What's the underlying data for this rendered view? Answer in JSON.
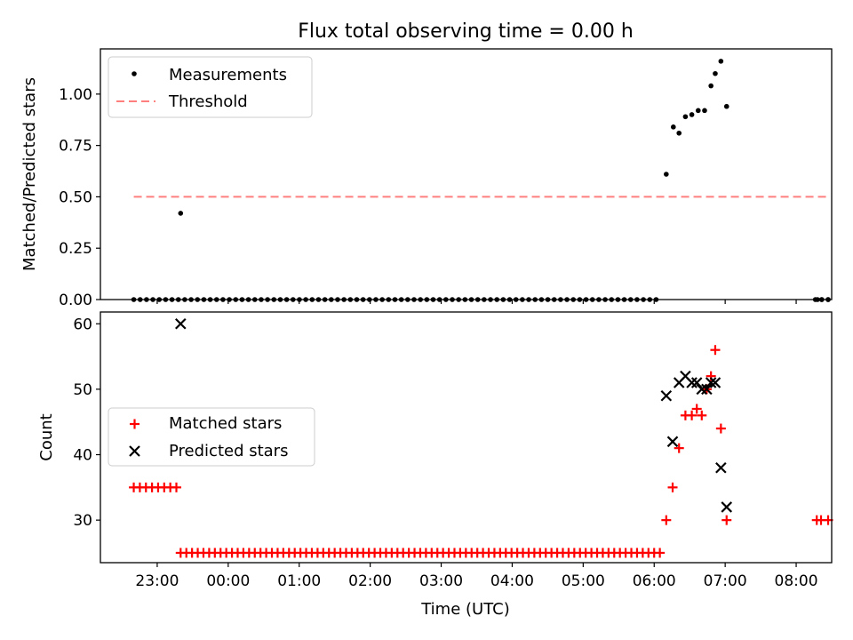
{
  "figure": {
    "title": "Flux total observing time = 0.00 h",
    "xlabel": "Time (UTC)",
    "xticks": [
      "23:00",
      "00:00",
      "01:00",
      "02:00",
      "03:00",
      "04:00",
      "05:00",
      "06:00",
      "07:00",
      "08:00"
    ]
  },
  "colors": {
    "measure": "#000000",
    "threshold": "#ff7f7f",
    "matched": "#ff0000",
    "predicted": "#000000"
  },
  "chart_data": [
    {
      "type": "scatter",
      "ylabel": "Matched/Predicted stars",
      "ylim": [
        0,
        1.22
      ],
      "xlim": [
        -0.8,
        9.5
      ],
      "yticks": [
        "0.00",
        "0.25",
        "0.50",
        "0.75",
        "1.00"
      ],
      "legend": {
        "placement": "top-left",
        "entries": [
          "Measurements",
          "Threshold"
        ]
      },
      "threshold": {
        "name": "Threshold",
        "value": 0.5,
        "x": [
          -0.33,
          9.45
        ]
      },
      "series": [
        {
          "name": "Measurements",
          "zero_run": {
            "x_start": -0.33,
            "x_end": 9.45,
            "count": 110,
            "y": 0,
            "skip_ranges": [
              [
                7.1,
                9.2
              ]
            ]
          },
          "points": [
            {
              "x": 0.33,
              "y": 0.42
            },
            {
              "x": 7.17,
              "y": 0.61
            },
            {
              "x": 7.27,
              "y": 0.84
            },
            {
              "x": 7.35,
              "y": 0.81
            },
            {
              "x": 7.44,
              "y": 0.89
            },
            {
              "x": 7.53,
              "y": 0.9
            },
            {
              "x": 7.62,
              "y": 0.92
            },
            {
              "x": 7.71,
              "y": 0.92
            },
            {
              "x": 7.8,
              "y": 1.04
            },
            {
              "x": 7.86,
              "y": 1.1
            },
            {
              "x": 7.94,
              "y": 1.16
            },
            {
              "x": 8.02,
              "y": 0.94
            },
            {
              "x": 9.3,
              "y": 0
            },
            {
              "x": 9.36,
              "y": 0
            },
            {
              "x": 9.45,
              "y": 0
            }
          ]
        }
      ]
    },
    {
      "type": "scatter",
      "ylabel": "Count",
      "ylim": [
        23.5,
        61.8
      ],
      "xlim": [
        -0.8,
        9.5
      ],
      "yticks": [
        30,
        40,
        50,
        60
      ],
      "legend": {
        "placement": "center-left",
        "entries": [
          "Matched stars",
          "Predicted stars"
        ]
      },
      "series": [
        {
          "name": "Matched stars",
          "runs": [
            {
              "x_start": -0.33,
              "x_end": 0.27,
              "count": 8,
              "y": 35
            },
            {
              "x_start": 0.33,
              "x_end": 7.08,
              "count": 85,
              "y": 25
            }
          ],
          "points": [
            {
              "x": 7.17,
              "y": 30
            },
            {
              "x": 7.26,
              "y": 35
            },
            {
              "x": 7.35,
              "y": 41
            },
            {
              "x": 7.44,
              "y": 46
            },
            {
              "x": 7.53,
              "y": 46
            },
            {
              "x": 7.6,
              "y": 47
            },
            {
              "x": 7.67,
              "y": 46
            },
            {
              "x": 7.74,
              "y": 50
            },
            {
              "x": 7.8,
              "y": 52
            },
            {
              "x": 7.86,
              "y": 56
            },
            {
              "x": 7.94,
              "y": 44
            },
            {
              "x": 8.02,
              "y": 30
            },
            {
              "x": 9.29,
              "y": 30
            },
            {
              "x": 9.35,
              "y": 30
            },
            {
              "x": 9.45,
              "y": 30
            }
          ]
        },
        {
          "name": "Predicted stars",
          "points": [
            {
              "x": 0.33,
              "y": 60
            },
            {
              "x": 7.17,
              "y": 49
            },
            {
              "x": 7.26,
              "y": 42
            },
            {
              "x": 7.35,
              "y": 51
            },
            {
              "x": 7.44,
              "y": 52
            },
            {
              "x": 7.53,
              "y": 51
            },
            {
              "x": 7.6,
              "y": 51
            },
            {
              "x": 7.67,
              "y": 50
            },
            {
              "x": 7.74,
              "y": 50
            },
            {
              "x": 7.8,
              "y": 51
            },
            {
              "x": 7.86,
              "y": 51
            },
            {
              "x": 7.94,
              "y": 38
            },
            {
              "x": 8.02,
              "y": 32
            }
          ]
        }
      ]
    }
  ]
}
